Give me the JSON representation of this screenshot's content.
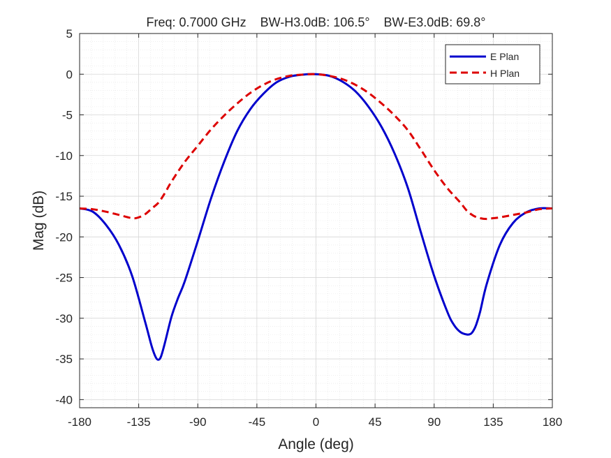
{
  "chart_data": {
    "type": "line",
    "title": "Freq: 0.7000 GHz    BW-H3.0dB: 106.5°    BW-E3.0dB: 69.8°",
    "xlabel": "Angle (deg)",
    "ylabel": "Mag (dB)",
    "xlim": [
      -180,
      180
    ],
    "ylim": [
      -41,
      5
    ],
    "xticks": [
      -180,
      -135,
      -90,
      -45,
      0,
      45,
      90,
      135,
      180
    ],
    "yticks": [
      5,
      0,
      -5,
      -10,
      -15,
      -20,
      -25,
      -30,
      -35,
      -40
    ],
    "grid": true,
    "minor_grid": true,
    "legend_position": "top-right",
    "series": [
      {
        "name": "E Plan",
        "color": "#0000CC",
        "line_style": "solid",
        "x": [
          -180,
          -170,
          -160,
          -150,
          -140,
          -130,
          -125,
          -122,
          -120,
          -118,
          -115,
          -110,
          -105,
          -100,
          -90,
          -80,
          -70,
          -60,
          -50,
          -40,
          -30,
          -20,
          -10,
          0,
          10,
          20,
          30,
          40,
          50,
          60,
          70,
          80,
          90,
          100,
          105,
          110,
          115,
          118,
          120,
          122,
          125,
          130,
          140,
          150,
          160,
          170,
          180
        ],
        "y": [
          -16.5,
          -16.9,
          -18.5,
          -21.0,
          -24.8,
          -30.5,
          -33.5,
          -34.8,
          -35.1,
          -34.7,
          -33.0,
          -29.8,
          -27.5,
          -25.5,
          -20.5,
          -15.3,
          -10.8,
          -7.0,
          -4.3,
          -2.4,
          -1.0,
          -0.3,
          -0.05,
          0,
          -0.2,
          -0.9,
          -2.1,
          -4.0,
          -6.5,
          -9.8,
          -14.0,
          -19.5,
          -24.8,
          -29.2,
          -30.8,
          -31.7,
          -32.0,
          -31.9,
          -31.5,
          -30.8,
          -29.2,
          -25.8,
          -21.0,
          -18.3,
          -17.0,
          -16.5,
          -16.5
        ]
      },
      {
        "name": "H Plan",
        "color": "#DD0000",
        "line_style": "dashed",
        "x": [
          -180,
          -170,
          -160,
          -150,
          -140,
          -135,
          -130,
          -125,
          -120,
          -115,
          -110,
          -100,
          -90,
          -80,
          -70,
          -60,
          -50,
          -40,
          -30,
          -20,
          -10,
          0,
          10,
          20,
          30,
          40,
          50,
          60,
          70,
          80,
          90,
          100,
          110,
          115,
          120,
          125,
          130,
          135,
          140,
          150,
          160,
          170,
          180
        ],
        "y": [
          -16.5,
          -16.6,
          -16.9,
          -17.3,
          -17.7,
          -17.6,
          -17.2,
          -16.5,
          -15.8,
          -14.6,
          -13.2,
          -10.8,
          -8.8,
          -6.8,
          -5.1,
          -3.6,
          -2.3,
          -1.3,
          -0.6,
          -0.2,
          -0.05,
          0,
          -0.2,
          -0.6,
          -1.3,
          -2.3,
          -3.6,
          -5.1,
          -6.9,
          -9.3,
          -11.8,
          -14.0,
          -15.8,
          -16.8,
          -17.4,
          -17.7,
          -17.8,
          -17.7,
          -17.6,
          -17.3,
          -17.0,
          -16.6,
          -16.5
        ]
      }
    ]
  }
}
